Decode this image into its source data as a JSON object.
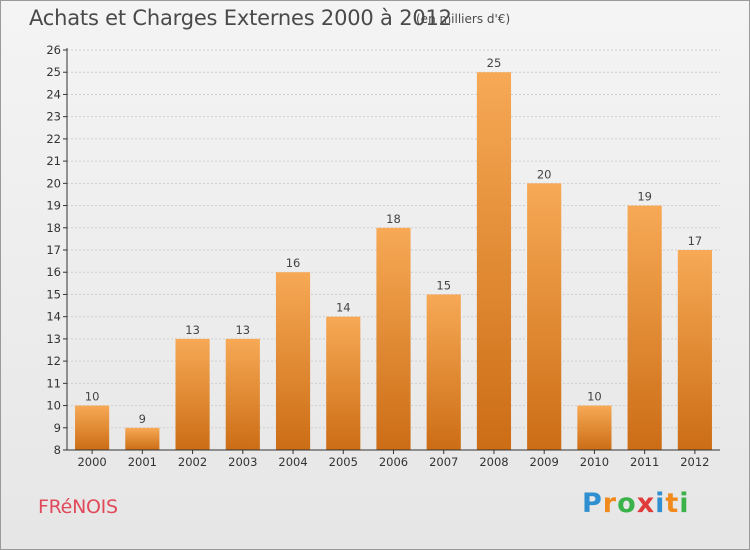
{
  "header": {
    "title": "Achats et Charges Externes 2000 à 2012",
    "subtitle": "(en milliers d'€)"
  },
  "footer": {
    "commune": "FRéNOIS",
    "logo": [
      "P",
      "r",
      "o",
      "x",
      "i",
      "t",
      "i"
    ],
    "logo_colors": [
      "#2f8fd0",
      "#f08a1c",
      "#3cb34a",
      "#e03c3c",
      "#2f8fd0",
      "#f08a1c",
      "#3cb34a"
    ]
  },
  "colors": {
    "bar_top": "#f7a955",
    "bar_bottom": "#cc6d16",
    "axis": "#333333",
    "grid": "#cfcfcf"
  },
  "chart_data": {
    "type": "bar",
    "title": "Achats et Charges Externes 2000 à 2012",
    "subtitle": "(en milliers d'€)",
    "xlabel": "",
    "ylabel": "",
    "categories": [
      "2000",
      "2001",
      "2002",
      "2003",
      "2004",
      "2005",
      "2006",
      "2007",
      "2008",
      "2009",
      "2010",
      "2011",
      "2012"
    ],
    "values": [
      10,
      9,
      13,
      13,
      16,
      14,
      18,
      15,
      25,
      20,
      10,
      19,
      17
    ],
    "ylim": [
      8,
      26
    ],
    "yticks": [
      8,
      9,
      10,
      11,
      12,
      13,
      14,
      15,
      16,
      17,
      18,
      19,
      20,
      21,
      22,
      23,
      24,
      25,
      26
    ],
    "grid": true,
    "legend": "none"
  }
}
